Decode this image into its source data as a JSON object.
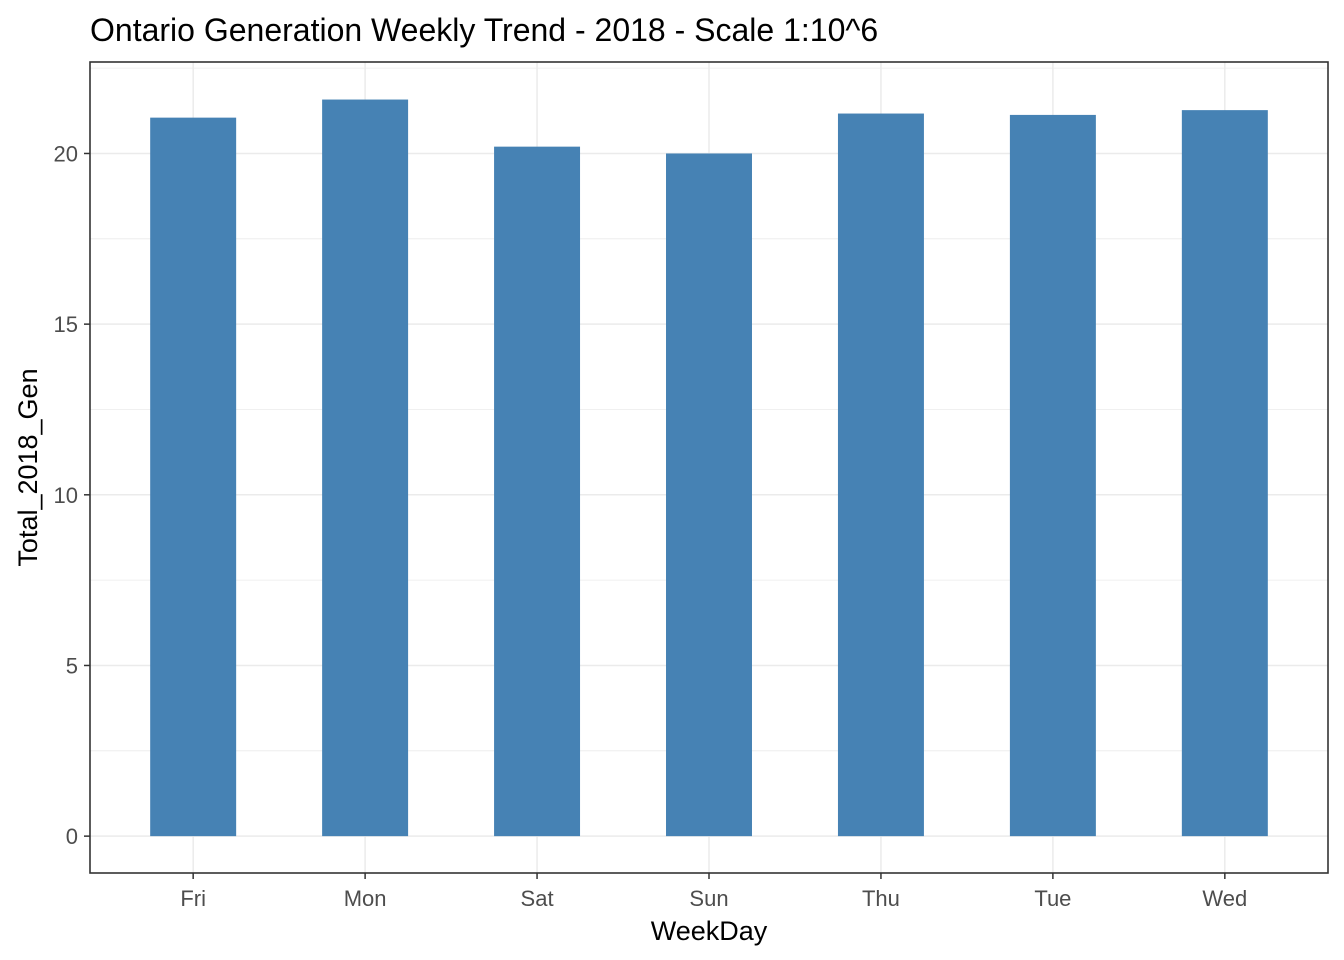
{
  "chart_data": {
    "type": "bar",
    "title": "Ontario Generation Weekly Trend - 2018 - Scale 1:10^6",
    "xlabel": "WeekDay",
    "ylabel": "Total_2018_Gen",
    "categories": [
      "Fri",
      "Mon",
      "Sat",
      "Sun",
      "Thu",
      "Tue",
      "Wed"
    ],
    "values": [
      21.05,
      21.58,
      20.2,
      20.0,
      21.17,
      21.13,
      21.27
    ],
    "ylim": [
      -1.08,
      22.68
    ],
    "yticks": [
      0,
      5,
      10,
      15,
      20
    ],
    "ytick_labels": [
      "0",
      "5",
      "10",
      "15",
      "20"
    ],
    "grid": true,
    "bar_color": "#4682b4",
    "panel_border_color": "#333333",
    "grid_color": "#ebebeb",
    "theme": "bw"
  }
}
